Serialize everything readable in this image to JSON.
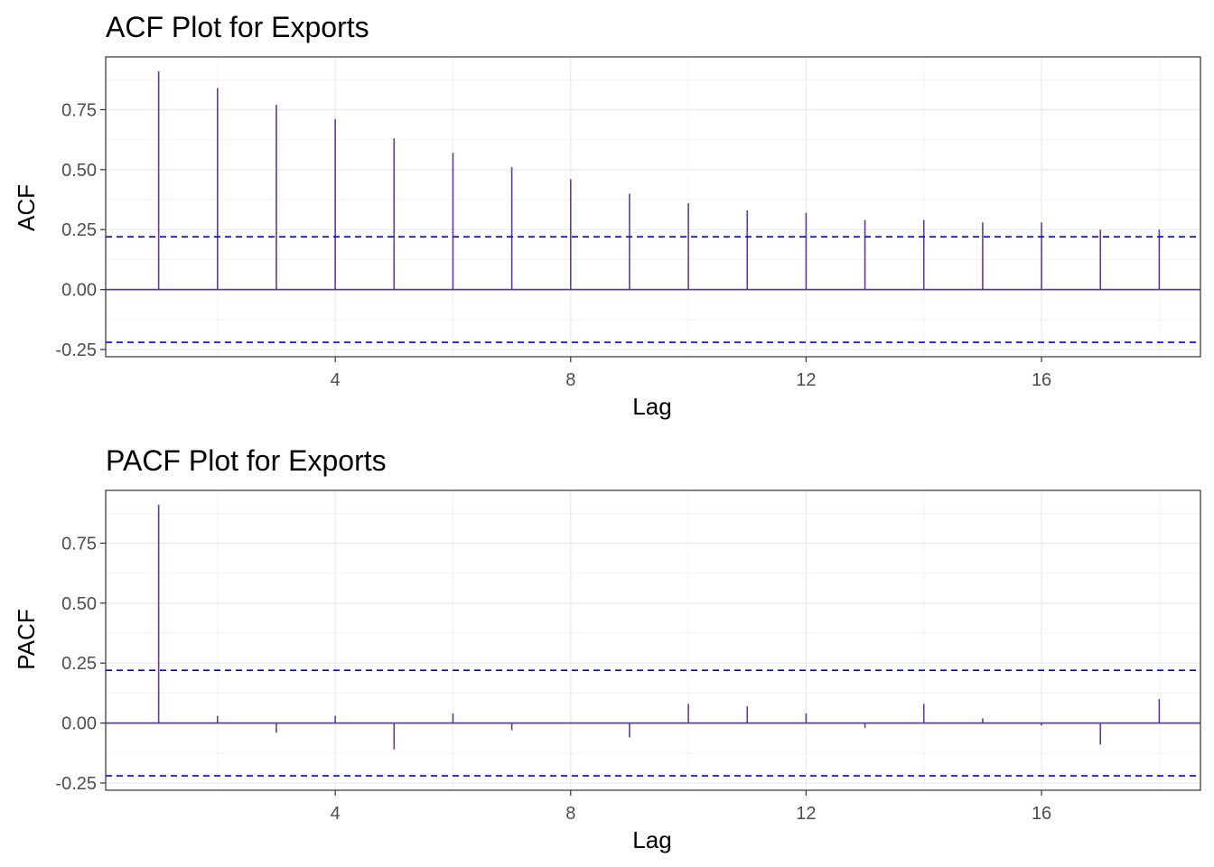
{
  "chart_data": [
    {
      "type": "bar",
      "title": "ACF Plot for Exports",
      "xlabel": "Lag",
      "ylabel": "ACF",
      "x": [
        1,
        2,
        3,
        4,
        5,
        6,
        7,
        8,
        9,
        10,
        11,
        12,
        13,
        14,
        15,
        16,
        17,
        18
      ],
      "values": [
        0.91,
        0.84,
        0.77,
        0.71,
        0.63,
        0.57,
        0.51,
        0.46,
        0.4,
        0.36,
        0.33,
        0.32,
        0.29,
        0.29,
        0.28,
        0.28,
        0.25,
        0.25
      ],
      "conf_limit": 0.22,
      "xlim": [
        0.1,
        18.7
      ],
      "ylim": [
        -0.28,
        0.97
      ],
      "xticks": [
        4,
        8,
        12,
        16
      ],
      "yticks": [
        -0.25,
        0.0,
        0.25,
        0.5,
        0.75
      ],
      "ytick_labels": [
        "-0.25",
        "0.00",
        "0.25",
        "0.50",
        "0.75"
      ],
      "xtick_labels": [
        "4",
        "8",
        "12",
        "16"
      ],
      "grid": true,
      "bar_color": "#5e3c99",
      "limit_color": "#0000ff"
    },
    {
      "type": "bar",
      "title": "PACF Plot for Exports",
      "xlabel": "Lag",
      "ylabel": "PACF",
      "x": [
        1,
        2,
        3,
        4,
        5,
        6,
        7,
        8,
        9,
        10,
        11,
        12,
        13,
        14,
        15,
        16,
        17,
        18
      ],
      "values": [
        0.91,
        0.03,
        -0.04,
        0.03,
        -0.11,
        0.04,
        -0.03,
        0.0,
        -0.06,
        0.08,
        0.07,
        0.04,
        -0.02,
        0.08,
        0.02,
        -0.01,
        -0.09,
        0.1
      ],
      "conf_limit": 0.22,
      "xlim": [
        0.1,
        18.7
      ],
      "ylim": [
        -0.28,
        0.97
      ],
      "xticks": [
        4,
        8,
        12,
        16
      ],
      "yticks": [
        -0.25,
        0.0,
        0.25,
        0.5,
        0.75
      ],
      "ytick_labels": [
        "-0.25",
        "0.00",
        "0.25",
        "0.50",
        "0.75"
      ],
      "xtick_labels": [
        "4",
        "8",
        "12",
        "16"
      ],
      "grid": true,
      "bar_color": "#5e3c99",
      "limit_color": "#0000ff"
    }
  ]
}
